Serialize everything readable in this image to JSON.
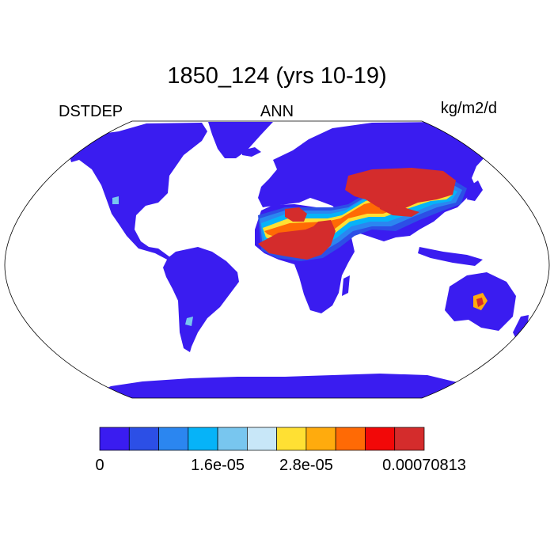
{
  "title": "1850_124 (yrs 10-19)",
  "left_string": "DSTDEP",
  "center_string": "ANN",
  "right_string": "kg/m2/d",
  "colorbar": {
    "colors": [
      "#3a1cf0",
      "#2c4fe6",
      "#2b86f0",
      "#06b3f8",
      "#78c6ef",
      "#c8e7f8",
      "#ffe033",
      "#ffab0d",
      "#ff6a05",
      "#f20808",
      "#d42c2c"
    ],
    "labels": [
      {
        "text": "0",
        "index": 0
      },
      {
        "text": "1.6e-05",
        "index": 4
      },
      {
        "text": "2.8e-05",
        "index": 7
      },
      {
        "text": "0.00070813",
        "index": 11
      }
    ]
  }
}
